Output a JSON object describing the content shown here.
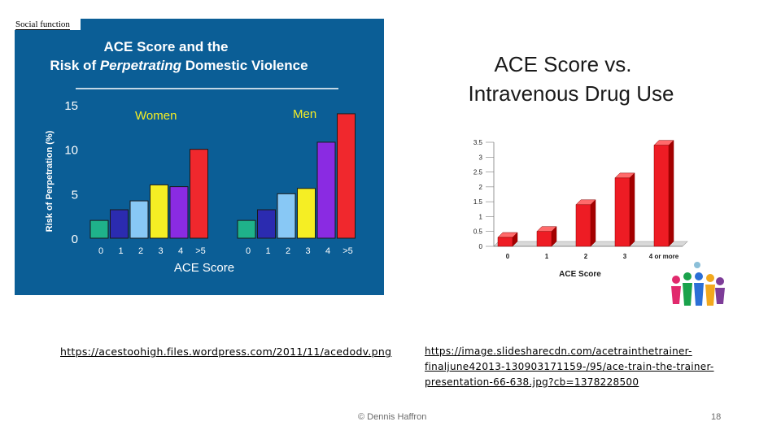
{
  "left_panel": {
    "corner_label": "Social function"
  },
  "links": {
    "left": "https://acestoohigh.files.wordpress.com/2011/11/acedodv.png",
    "right": "https://image.slidesharecdn.com/acetrainthetrainer-finaljune42013-130903171159-/95/ace-train-the-trainer-presentation-66-638.jpg?cb=1378228500"
  },
  "footer": {
    "copyright": "© Dennis Haffron",
    "page_number": "18"
  },
  "logo": {
    "icon": "group-of-people-logo-icon",
    "text": ""
  },
  "chart_data": [
    {
      "type": "bar",
      "title": "ACE Score and the Risk of Perpetrating Domestic Violence",
      "title_line1": "ACE Score and the",
      "title_line2_prefix": "Risk of ",
      "title_line2_emph": "Perpetrating",
      "title_line2_suffix": " Domestic Violence",
      "xlabel": "ACE Score",
      "ylabel": "Risk of Perpetration (%)",
      "ylim": [
        0,
        15
      ],
      "yticks": [
        "0",
        "5",
        "10",
        "15"
      ],
      "categories": [
        "0",
        "1",
        "2",
        "3",
        "4",
        ">5"
      ],
      "bar_colors": [
        "#1fb28a",
        "#2b2bb0",
        "#88c8f5",
        "#f5ee24",
        "#8a2be2",
        "#f0282d"
      ],
      "groups": [
        {
          "name": "Women",
          "values": [
            2.0,
            3.2,
            4.2,
            6.0,
            5.8,
            10.0
          ]
        },
        {
          "name": "Men",
          "values": [
            2.0,
            3.2,
            5.0,
            5.6,
            10.8,
            14.0
          ]
        }
      ]
    },
    {
      "type": "bar",
      "title": "ACE Score vs. Intravenous Drug Use",
      "title_line1": "ACE Score vs.",
      "title_line2": "Intravenous Drug Use",
      "xlabel": "ACE Score",
      "ylim": [
        0,
        3.5
      ],
      "yticks": [
        "0",
        "0.5",
        "1",
        "1.5",
        "2",
        "2.5",
        "3",
        "3.5"
      ],
      "categories": [
        "0",
        "1",
        "2",
        "3",
        "4 or more"
      ],
      "values": [
        0.3,
        0.5,
        1.4,
        2.3,
        3.4
      ],
      "bar_color": "#ee1c24"
    }
  ]
}
